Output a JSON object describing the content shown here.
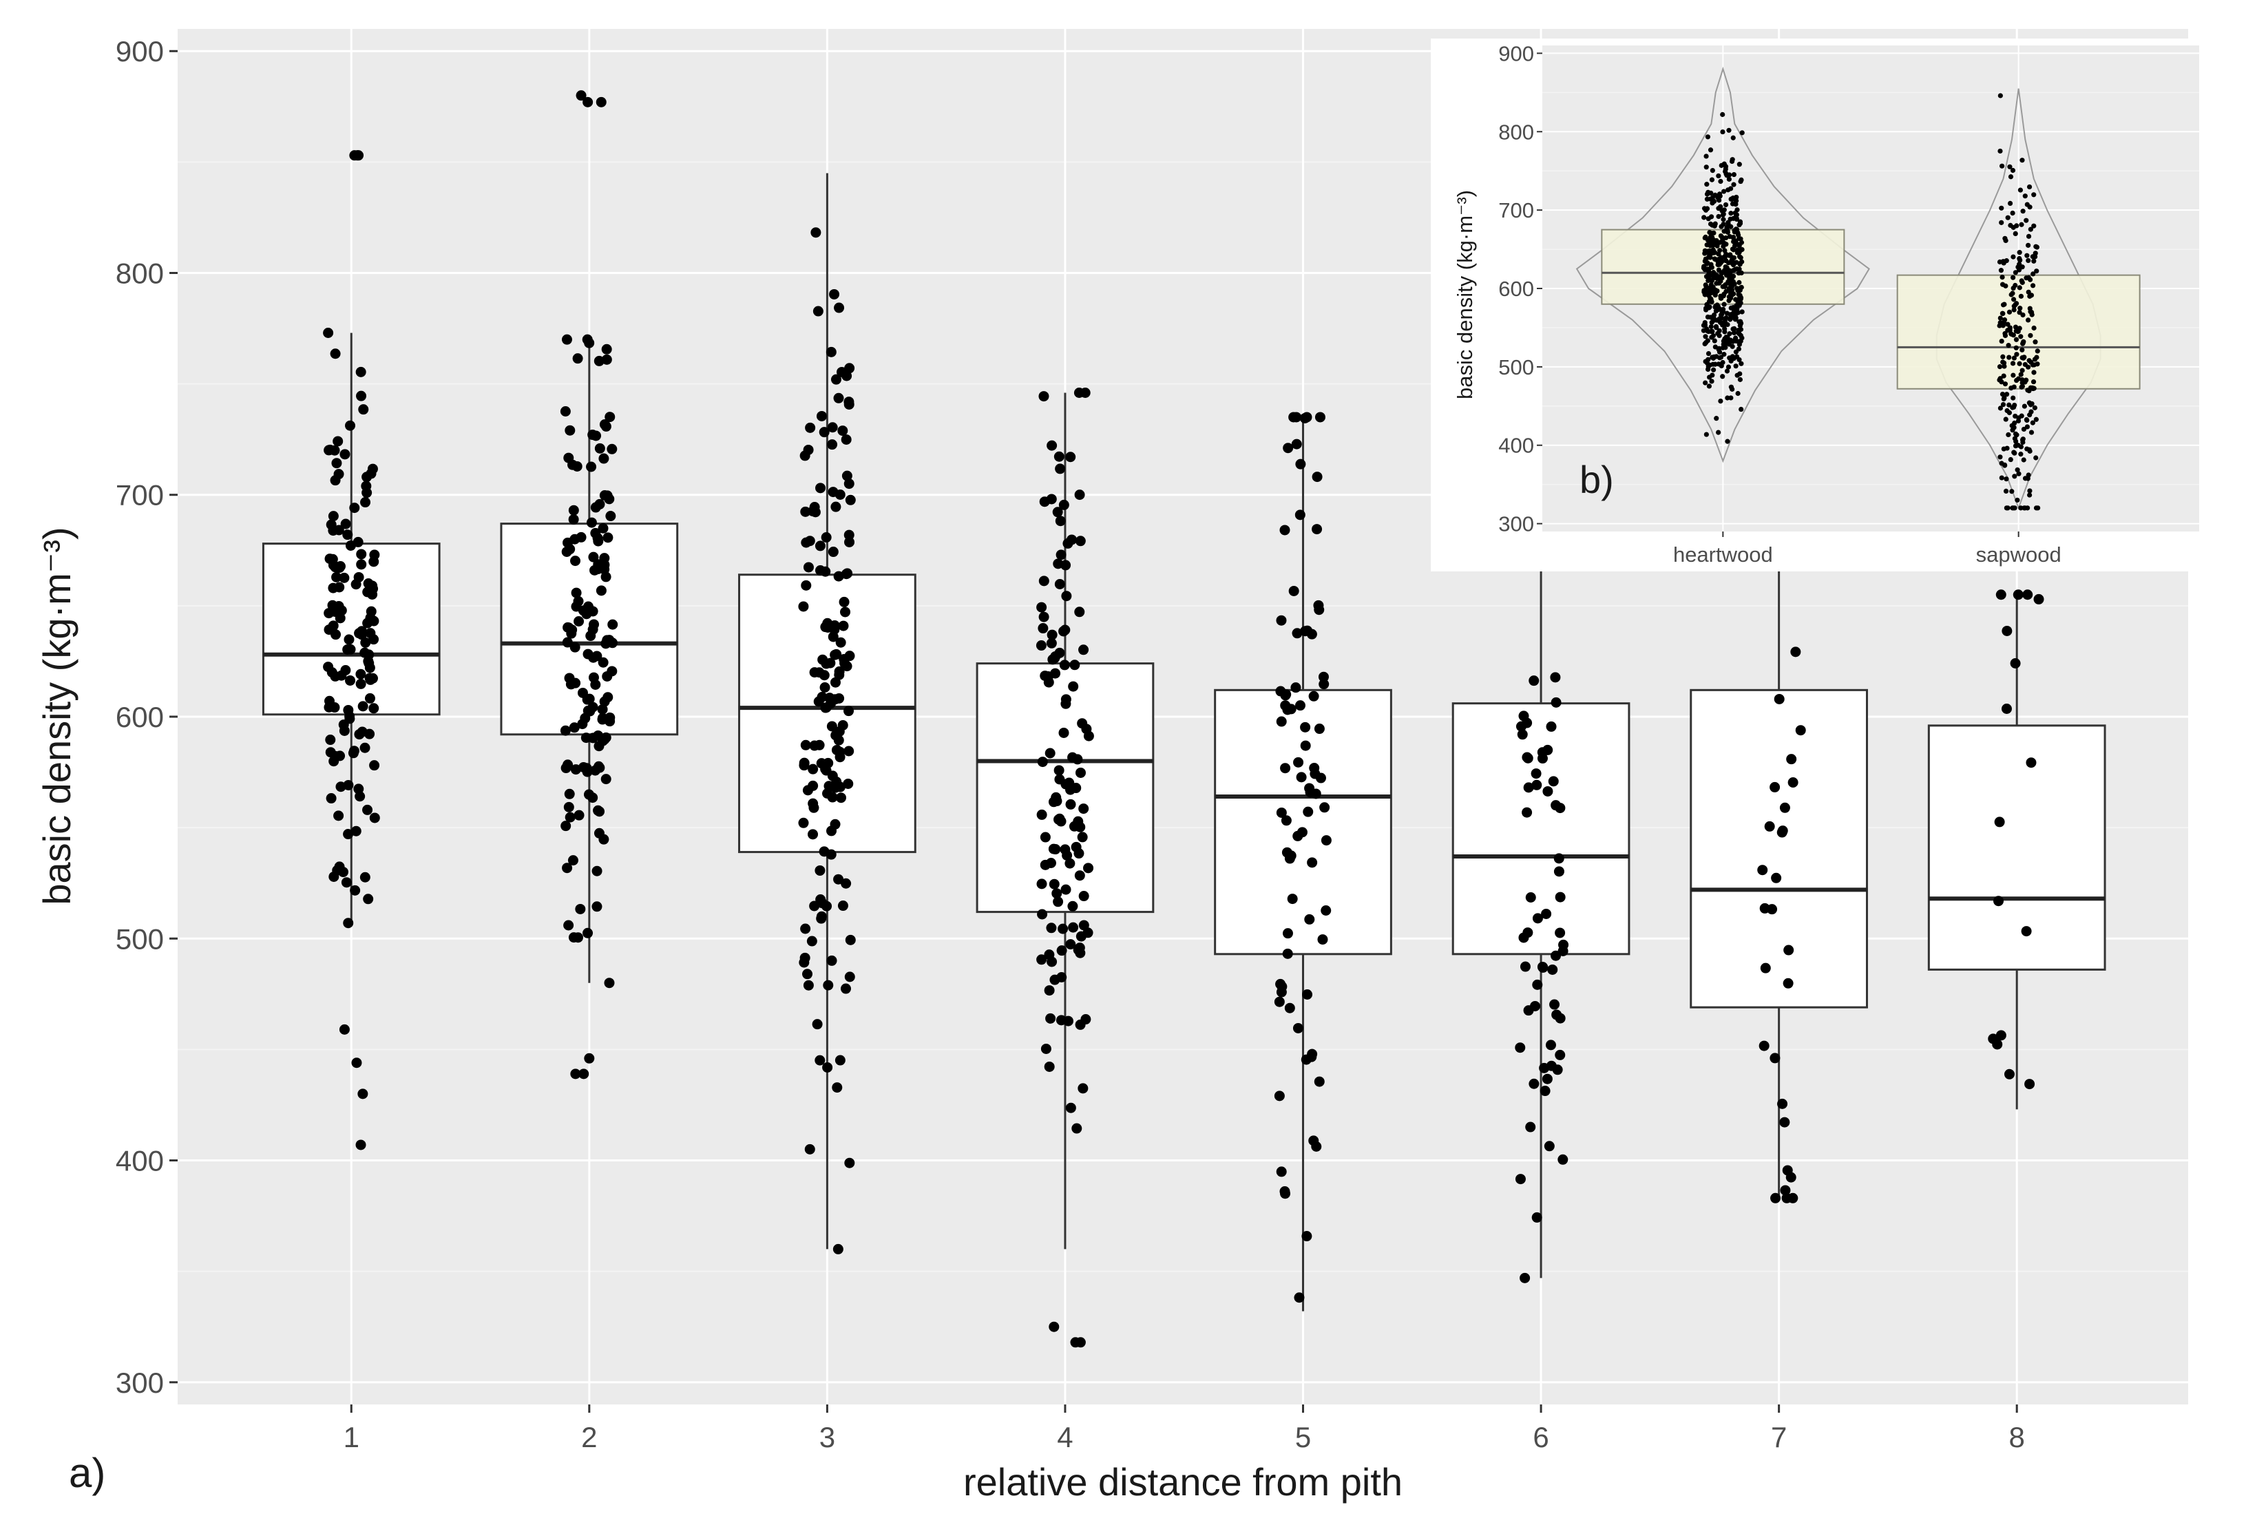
{
  "chart_data": [
    {
      "id": "a",
      "type": "boxplot",
      "panel_label": "a)",
      "xlabel": "relative distance from pith",
      "ylabel": "basic density (kg·m⁻³)",
      "ylim": [
        290,
        910
      ],
      "yticks": [
        "300",
        "400",
        "500",
        "600",
        "700",
        "800",
        "900"
      ],
      "categories": [
        "1",
        "2",
        "3",
        "4",
        "5",
        "6",
        "7",
        "8"
      ],
      "grid": true,
      "boxes": [
        {
          "category": "1",
          "q1": 601,
          "median": 628,
          "q3": 678,
          "whisker_low": 507,
          "whisker_high": 773
        },
        {
          "category": "2",
          "q1": 592,
          "median": 633,
          "q3": 687,
          "whisker_low": 480,
          "whisker_high": 770
        },
        {
          "category": "3",
          "q1": 539,
          "median": 604,
          "q3": 664,
          "whisker_low": 360,
          "whisker_high": 845
        },
        {
          "category": "4",
          "q1": 512,
          "median": 580,
          "q3": 624,
          "whisker_low": 360,
          "whisker_high": 746
        },
        {
          "category": "5",
          "q1": 493,
          "median": 564,
          "q3": 612,
          "whisker_low": 332,
          "whisker_high": 735
        },
        {
          "category": "6",
          "q1": 493,
          "median": 537,
          "q3": 606,
          "whisker_low": 347,
          "whisker_high": 700
        },
        {
          "category": "7",
          "q1": 469,
          "median": 522,
          "q3": 612,
          "whisker_low": 383,
          "whisker_high": 715
        },
        {
          "category": "8",
          "q1": 486,
          "median": 518,
          "q3": 596,
          "whisker_low": 423,
          "whisker_high": 655
        }
      ],
      "points": [
        {
          "category": "1",
          "n": 130,
          "outliers": [
            853,
            853,
            853,
            459,
            444,
            430,
            407
          ]
        },
        {
          "category": "2",
          "n": 140,
          "outliers": [
            880,
            877,
            877,
            446,
            439,
            439
          ]
        },
        {
          "category": "3",
          "n": 150,
          "outliers": []
        },
        {
          "category": "4",
          "n": 120,
          "outliers": [
            325,
            318,
            318
          ]
        },
        {
          "category": "5",
          "n": 80,
          "outliers": []
        },
        {
          "category": "6",
          "n": 60,
          "outliers": []
        },
        {
          "category": "7",
          "n": 30,
          "outliers": []
        },
        {
          "category": "8",
          "n": 16,
          "outliers": []
        }
      ]
    },
    {
      "id": "b",
      "type": "violin_boxplot",
      "panel_label": "b)",
      "xlabel": "",
      "ylabel": "basic density (kg·m⁻³)",
      "ylim": [
        290,
        910
      ],
      "yticks": [
        "300",
        "400",
        "500",
        "600",
        "700",
        "800",
        "900"
      ],
      "categories": [
        "heartwood",
        "sapwood"
      ],
      "box_fill": "#f3f3dc",
      "grid": true,
      "boxes": [
        {
          "category": "heartwood",
          "q1": 580,
          "median": 620,
          "q3": 675,
          "min": 380,
          "max": 880
        },
        {
          "category": "sapwood",
          "q1": 472,
          "median": 525,
          "q3": 617,
          "min": 320,
          "max": 855
        }
      ],
      "points": [
        {
          "category": "heartwood",
          "n": 520
        },
        {
          "category": "sapwood",
          "n": 260
        }
      ]
    }
  ],
  "colors": {
    "panel_bg": "#ebebeb",
    "grid_major": "#ffffff",
    "grid_minor": "#f4f4f4",
    "box_fill": "#ffffff",
    "box_stroke": "#333333",
    "point": "#000000",
    "violin_stroke": "#9a9a9a",
    "inset_box_fill": "#f3f3dc"
  }
}
